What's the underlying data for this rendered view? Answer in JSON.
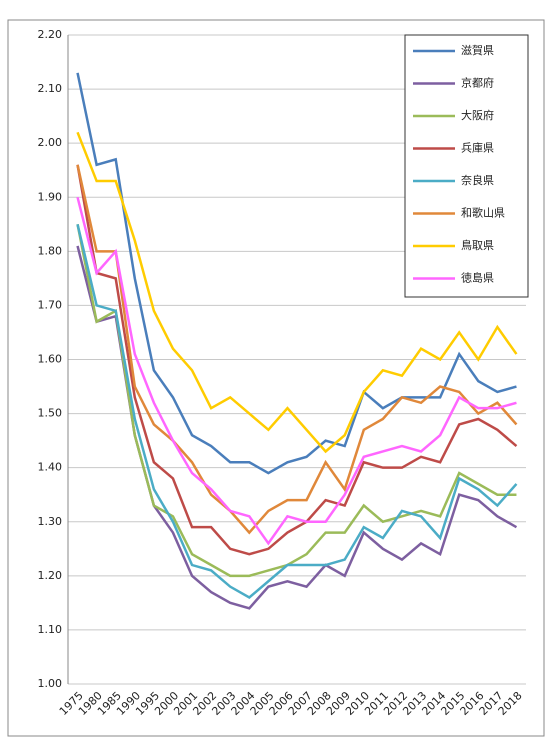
{
  "chart_data": {
    "type": "line",
    "categories": [
      "1975",
      "1980",
      "1985",
      "1990",
      "1995",
      "2000",
      "2001",
      "2002",
      "2003",
      "2004",
      "2005",
      "2006",
      "2007",
      "2008",
      "2009",
      "2010",
      "2011",
      "2012",
      "2013",
      "2014",
      "2015",
      "2016",
      "2017",
      "2018"
    ],
    "series": [
      {
        "name": "滋賀県",
        "color": "#4a7ebb",
        "values": [
          2.13,
          1.96,
          1.97,
          1.75,
          1.58,
          1.53,
          1.46,
          1.44,
          1.41,
          1.41,
          1.39,
          1.41,
          1.42,
          1.45,
          1.44,
          1.54,
          1.51,
          1.53,
          1.53,
          1.53,
          1.61,
          1.56,
          1.54,
          1.55
        ]
      },
      {
        "name": "京都府",
        "color": "#7d5fa0",
        "values": [
          1.81,
          1.67,
          1.68,
          1.46,
          1.33,
          1.28,
          1.2,
          1.17,
          1.15,
          1.14,
          1.18,
          1.19,
          1.18,
          1.22,
          1.2,
          1.28,
          1.25,
          1.23,
          1.26,
          1.24,
          1.35,
          1.34,
          1.31,
          1.29
        ]
      },
      {
        "name": "大阪府",
        "color": "#9bbb59",
        "values": [
          1.85,
          1.67,
          1.69,
          1.46,
          1.33,
          1.31,
          1.24,
          1.22,
          1.2,
          1.2,
          1.21,
          1.22,
          1.24,
          1.28,
          1.28,
          1.33,
          1.3,
          1.31,
          1.32,
          1.31,
          1.39,
          1.37,
          1.35,
          1.35
        ]
      },
      {
        "name": "兵庫県",
        "color": "#be4b48",
        "values": [
          1.96,
          1.76,
          1.75,
          1.53,
          1.41,
          1.38,
          1.29,
          1.29,
          1.25,
          1.24,
          1.25,
          1.28,
          1.3,
          1.34,
          1.33,
          1.41,
          1.4,
          1.4,
          1.42,
          1.41,
          1.48,
          1.49,
          1.47,
          1.44
        ]
      },
      {
        "name": "奈良県",
        "color": "#4bacc6",
        "values": [
          1.85,
          1.7,
          1.69,
          1.49,
          1.36,
          1.3,
          1.22,
          1.21,
          1.18,
          1.16,
          1.19,
          1.22,
          1.22,
          1.22,
          1.23,
          1.29,
          1.27,
          1.32,
          1.31,
          1.27,
          1.38,
          1.36,
          1.33,
          1.37
        ]
      },
      {
        "name": "和歌山県",
        "color": "#e0883a",
        "values": [
          1.96,
          1.8,
          1.8,
          1.55,
          1.48,
          1.45,
          1.41,
          1.35,
          1.32,
          1.28,
          1.32,
          1.34,
          1.34,
          1.41,
          1.36,
          1.47,
          1.49,
          1.53,
          1.52,
          1.55,
          1.54,
          1.5,
          1.52,
          1.48
        ]
      },
      {
        "name": "鳥取県",
        "color": "#ffcc00",
        "values": [
          2.02,
          1.93,
          1.93,
          1.82,
          1.69,
          1.62,
          1.58,
          1.51,
          1.53,
          1.5,
          1.47,
          1.51,
          1.47,
          1.43,
          1.46,
          1.54,
          1.58,
          1.57,
          1.62,
          1.6,
          1.65,
          1.6,
          1.66,
          1.61
        ]
      },
      {
        "name": "徳島県",
        "color": "#ff66ff",
        "values": [
          1.9,
          1.76,
          1.8,
          1.61,
          1.52,
          1.45,
          1.39,
          1.36,
          1.32,
          1.31,
          1.26,
          1.31,
          1.3,
          1.3,
          1.35,
          1.42,
          1.43,
          1.44,
          1.43,
          1.46,
          1.53,
          1.51,
          1.51,
          1.52
        ]
      }
    ],
    "ylim": [
      1.0,
      2.2
    ],
    "yticks": [
      {
        "value": 1.0,
        "label": "1.00"
      },
      {
        "value": 1.1,
        "label": "1.10"
      },
      {
        "value": 1.2,
        "label": "1.20"
      },
      {
        "value": 1.3,
        "label": "1.30"
      },
      {
        "value": 1.4,
        "label": "1.40"
      },
      {
        "value": 1.5,
        "label": "1.50"
      },
      {
        "value": 1.6,
        "label": "1.60"
      },
      {
        "value": 1.7,
        "label": "1.70"
      },
      {
        "value": 1.8,
        "label": "1.80"
      },
      {
        "value": 1.9,
        "label": "1.90"
      },
      {
        "value": 2.0,
        "label": "2.00"
      },
      {
        "value": 2.1,
        "label": "2.10"
      },
      {
        "value": 2.2,
        "label": "2.20"
      }
    ],
    "grid": true,
    "legend": "top-right"
  }
}
